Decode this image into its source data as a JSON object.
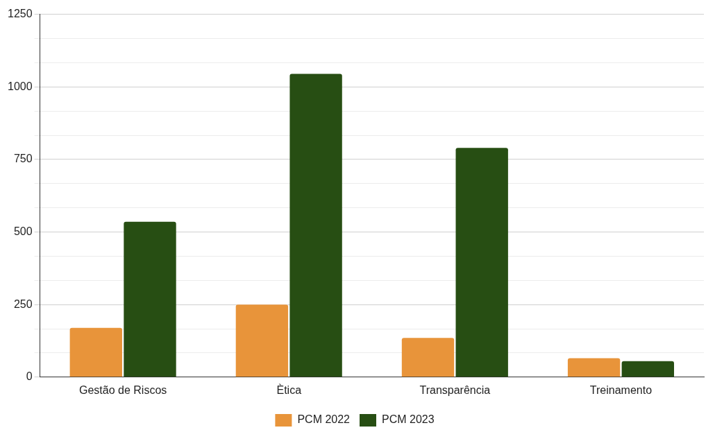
{
  "chart_data": {
    "type": "bar",
    "categories": [
      "Gestão de Riscos",
      "Ètica",
      "Transparência",
      "Treinamento"
    ],
    "series": [
      {
        "name": "PCM 2022",
        "color": "#e8943a",
        "values": [
          170,
          250,
          135,
          65
        ]
      },
      {
        "name": "PCM 2023",
        "color": "#274e13",
        "values": [
          535,
          1045,
          790,
          55
        ]
      }
    ],
    "ylim": [
      0,
      1250
    ],
    "yticks": [
      0,
      {
        "value": 83.33,
        "label": null
      },
      {
        "value": 166.67,
        "label": null
      },
      250,
      {
        "value": 333.33,
        "label": null
      },
      {
        "value": 416.67,
        "label": null
      },
      500,
      {
        "value": 583.33,
        "label": null
      },
      {
        "value": 666.67,
        "label": null
      },
      750,
      {
        "value": 833.33,
        "label": null
      },
      {
        "value": 916.67,
        "label": null
      },
      1000,
      {
        "value": 1083.33,
        "label": null
      },
      {
        "value": 1166.67,
        "label": null
      },
      1250
    ],
    "grid": "y",
    "legend": "bottom"
  }
}
